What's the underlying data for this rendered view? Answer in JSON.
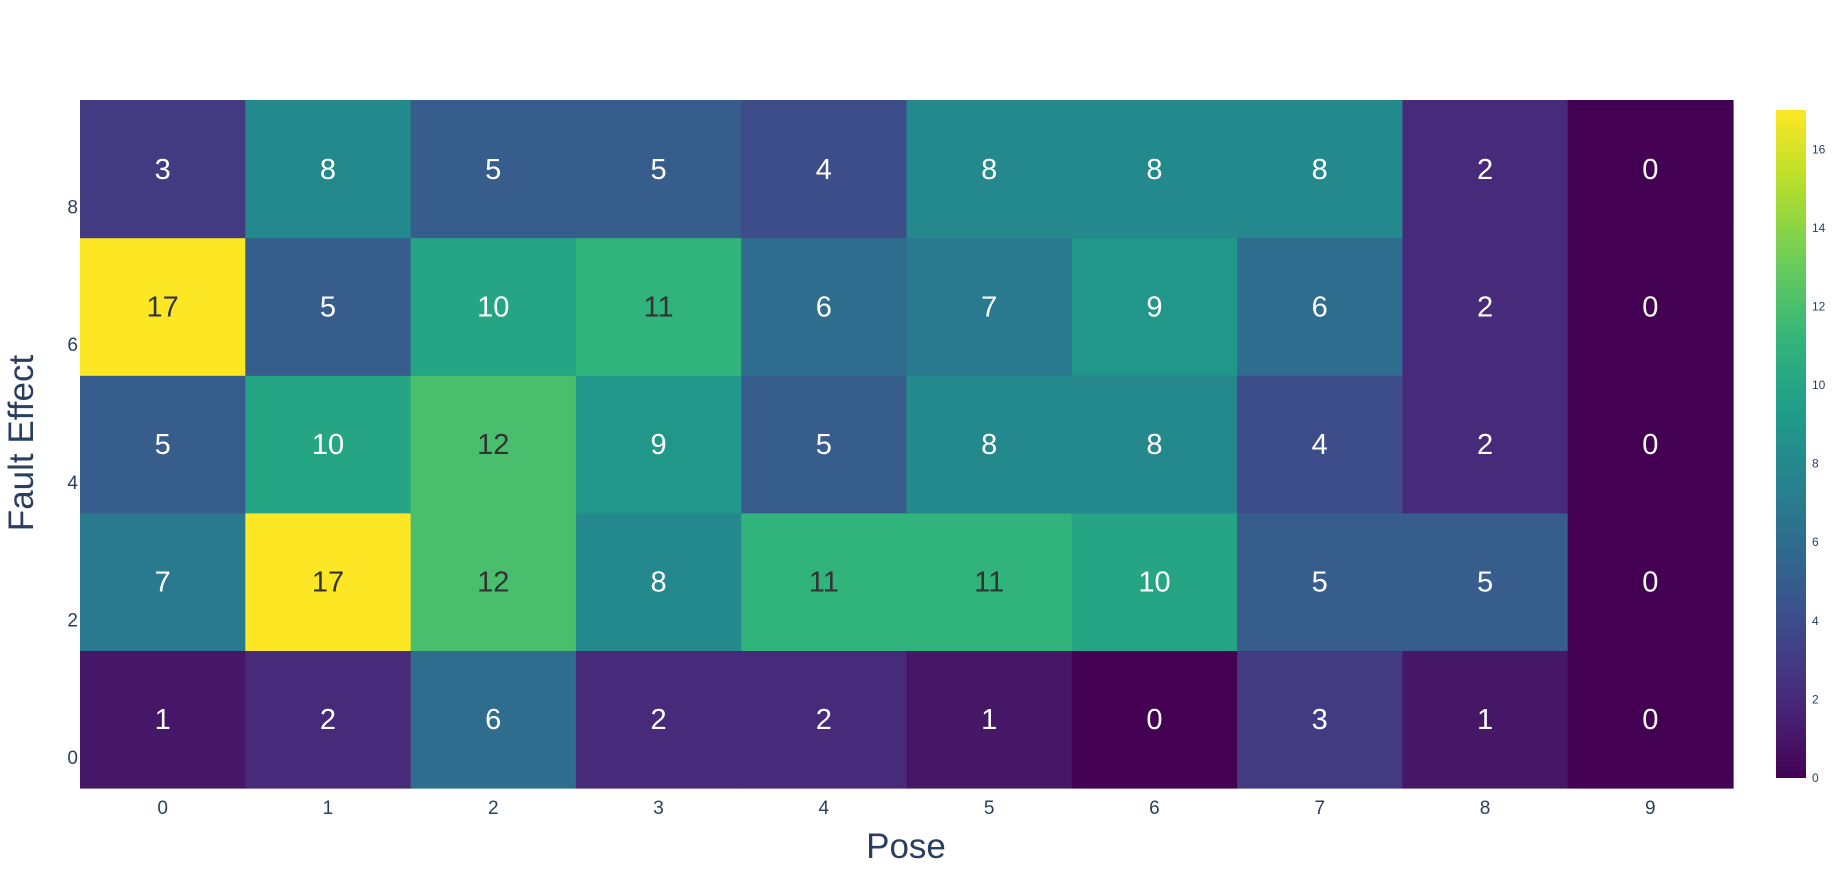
{
  "chart_data": {
    "type": "heatmap",
    "title": "",
    "xlabel": "Pose",
    "ylabel": "Fault Effect",
    "x": [
      0,
      1,
      2,
      3,
      4,
      5,
      6,
      7,
      8,
      9
    ],
    "x_tick_labels": [
      "0",
      "1",
      "2",
      "3",
      "4",
      "5",
      "6",
      "7",
      "8",
      "9"
    ],
    "y_rows_bottom_to_top": [
      0,
      1,
      2,
      3,
      4
    ],
    "y_tick_labels": [
      "0",
      "2",
      "4",
      "6",
      "8"
    ],
    "z_rows_bottom_to_top": [
      [
        1,
        2,
        6,
        2,
        2,
        1,
        0,
        3,
        1,
        0
      ],
      [
        7,
        17,
        12,
        8,
        11,
        11,
        10,
        5,
        5,
        0
      ],
      [
        5,
        10,
        12,
        9,
        5,
        8,
        8,
        4,
        2,
        0
      ],
      [
        17,
        5,
        10,
        11,
        6,
        7,
        9,
        6,
        2,
        0
      ],
      [
        3,
        8,
        5,
        5,
        4,
        8,
        8,
        8,
        2,
        0
      ]
    ],
    "colorscale": "Viridis",
    "zmin": 0,
    "zmax": 17,
    "colorbar_ticks": [
      0,
      2,
      4,
      6,
      8,
      10,
      12,
      14,
      16
    ],
    "colorbar_tick_labels": [
      "0",
      "2",
      "4",
      "6",
      "8",
      "10",
      "12",
      "14",
      "16"
    ],
    "text_colors": {
      "light": "#ffffff",
      "dark": "#333333"
    },
    "viridis_stops": [
      "#440154",
      "#482878",
      "#3e4989",
      "#31688e",
      "#26828e",
      "#1f9e89",
      "#35b779",
      "#6ece58",
      "#b5de2b",
      "#fde725"
    ]
  }
}
